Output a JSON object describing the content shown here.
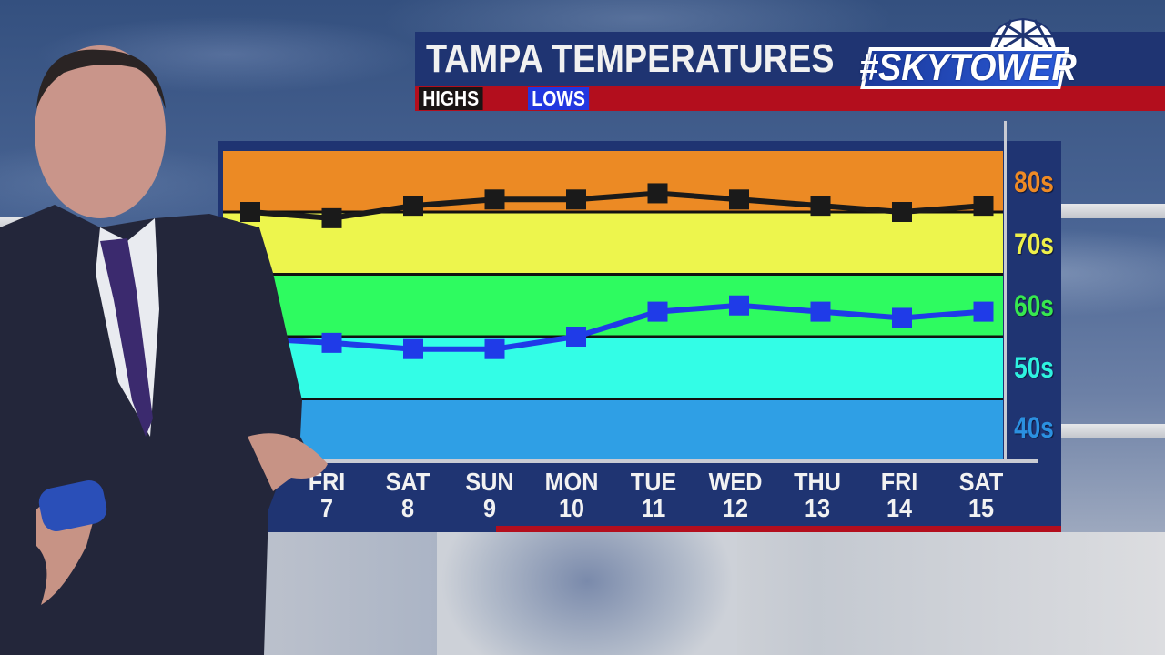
{
  "header": {
    "title": "TAMPA TEMPERATURES",
    "brand": "#SKYTOWER",
    "legend": {
      "highs": "HIGHS",
      "lows": "LOWS"
    }
  },
  "colors": {
    "navy": "#1f3472",
    "red": "#b30e1d",
    "highs_line": "#1a1a1a",
    "lows_line": "#1f3be8",
    "bands": {
      "80s": "#ec8a24",
      "70s": "#edf54d",
      "60s": "#2efb60",
      "50s": "#33fde6",
      "40s": "#2f9fe5"
    }
  },
  "y_axis": {
    "labels": [
      {
        "text": "80s",
        "color": "#ee8a25"
      },
      {
        "text": "70s",
        "color": "#eef04a"
      },
      {
        "text": "60s",
        "color": "#37e84f"
      },
      {
        "text": "50s",
        "color": "#2ef2e0"
      },
      {
        "text": "40s",
        "color": "#2b90e0"
      }
    ]
  },
  "x_axis": {
    "days": [
      {
        "dow": "FRI",
        "date": "7",
        "partially_hidden": true
      },
      {
        "dow": "SAT",
        "date": "8"
      },
      {
        "dow": "SUN",
        "date": "9"
      },
      {
        "dow": "MON",
        "date": "10"
      },
      {
        "dow": "TUE",
        "date": "11"
      },
      {
        "dow": "WED",
        "date": "12"
      },
      {
        "dow": "THU",
        "date": "13"
      },
      {
        "dow": "FRI",
        "date": "14"
      },
      {
        "dow": "SAT",
        "date": "15"
      }
    ]
  },
  "chart_data": {
    "type": "line",
    "title": "TAMPA TEMPERATURES",
    "subtitle": "#SKYTOWER",
    "xlabel": "",
    "ylabel": "",
    "categories": [
      "(hidden)",
      "FRI 7",
      "SAT 8",
      "SUN 9",
      "MON 10",
      "TUE 11",
      "WED 12",
      "THU 13",
      "FRI 14",
      "SAT 15"
    ],
    "series": [
      {
        "name": "HIGHS",
        "color": "#1a1a1a",
        "values": [
          80,
          79,
          81,
          82,
          82,
          83,
          82,
          81,
          80,
          81
        ]
      },
      {
        "name": "LOWS",
        "color": "#1f3be8",
        "values": [
          null,
          59,
          58,
          58,
          60,
          64,
          65,
          64,
          63,
          64
        ]
      }
    ],
    "y_bands": [
      {
        "label": "80s",
        "range": [
          80,
          90
        ],
        "color": "#ec8a24"
      },
      {
        "label": "70s",
        "range": [
          70,
          80
        ],
        "color": "#edf54d"
      },
      {
        "label": "60s",
        "range": [
          60,
          70
        ],
        "color": "#2efb60"
      },
      {
        "label": "50s",
        "range": [
          50,
          60
        ],
        "color": "#33fde6"
      },
      {
        "label": "40s",
        "range": [
          40,
          50
        ],
        "color": "#2f9fe5"
      }
    ],
    "ylim": [
      40,
      90
    ],
    "yticks": [
      "40s",
      "50s",
      "60s",
      "70s",
      "80s"
    ],
    "grid": true,
    "legend": {
      "position": "top-left",
      "entries": [
        "HIGHS",
        "LOWS"
      ]
    }
  }
}
